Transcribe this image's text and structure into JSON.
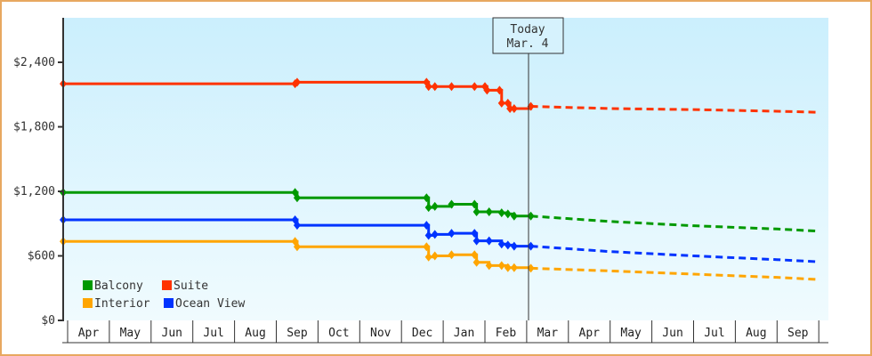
{
  "chart_data": {
    "type": "line",
    "title": "",
    "xlabel": "",
    "ylabel": "",
    "ylim": [
      0,
      2800
    ],
    "y_ticks": [
      {
        "value": 0,
        "label": "$0"
      },
      {
        "value": 600,
        "label": "$600"
      },
      {
        "value": 1200,
        "label": "$1,200"
      },
      {
        "value": 1800,
        "label": "$1,800"
      },
      {
        "value": 2400,
        "label": "$2,400"
      }
    ],
    "x_ticks": [
      "Apr",
      "May",
      "Jun",
      "Jul",
      "Aug",
      "Sep",
      "Oct",
      "Nov",
      "Dec",
      "Jan",
      "Feb",
      "Mar",
      "Apr",
      "May",
      "Jun",
      "Jul",
      "Aug",
      "Sep"
    ],
    "grid": false,
    "legend_position": "lower-left",
    "annotation": {
      "line1": "Today",
      "line2": "Mar. 4",
      "x_month": 11.1
    },
    "series": [
      {
        "name": "Suite",
        "color": "#ff3300",
        "points": [
          [
            0,
            2200
          ],
          [
            5.45,
            2200
          ],
          [
            5.5,
            2215
          ],
          [
            8.6,
            2215
          ],
          [
            8.65,
            2175
          ],
          [
            8.8,
            2175
          ],
          [
            9.2,
            2175
          ],
          [
            9.75,
            2175
          ],
          [
            10.0,
            2175
          ],
          [
            10.05,
            2140
          ],
          [
            10.35,
            2140
          ],
          [
            10.4,
            2020
          ],
          [
            10.55,
            2020
          ],
          [
            10.6,
            1970
          ],
          [
            10.7,
            1970
          ],
          [
            11.1,
            1990
          ]
        ],
        "forecast": [
          [
            11.1,
            1990
          ],
          [
            13.0,
            1970
          ],
          [
            15.0,
            1960
          ],
          [
            17.0,
            1945
          ],
          [
            18.0,
            1935
          ]
        ]
      },
      {
        "name": "Balcony",
        "color": "#009900",
        "points": [
          [
            0,
            1190
          ],
          [
            5.45,
            1190
          ],
          [
            5.5,
            1140
          ],
          [
            8.6,
            1140
          ],
          [
            8.65,
            1050
          ],
          [
            8.8,
            1060
          ],
          [
            9.2,
            1080
          ],
          [
            9.75,
            1080
          ],
          [
            9.8,
            1010
          ],
          [
            10.1,
            1010
          ],
          [
            10.4,
            1000
          ],
          [
            10.55,
            990
          ],
          [
            10.7,
            970
          ],
          [
            11.1,
            970
          ]
        ],
        "forecast": [
          [
            11.1,
            970
          ],
          [
            13.0,
            920
          ],
          [
            15.0,
            880
          ],
          [
            17.0,
            850
          ],
          [
            18.0,
            830
          ]
        ]
      },
      {
        "name": "Ocean View",
        "color": "#0033ff",
        "points": [
          [
            0,
            935
          ],
          [
            5.45,
            935
          ],
          [
            5.5,
            885
          ],
          [
            8.6,
            885
          ],
          [
            8.65,
            790
          ],
          [
            8.8,
            800
          ],
          [
            9.2,
            810
          ],
          [
            9.75,
            810
          ],
          [
            9.8,
            740
          ],
          [
            10.1,
            740
          ],
          [
            10.4,
            710
          ],
          [
            10.55,
            700
          ],
          [
            10.7,
            690
          ],
          [
            11.1,
            690
          ]
        ],
        "forecast": [
          [
            11.1,
            690
          ],
          [
            13.0,
            640
          ],
          [
            15.0,
            600
          ],
          [
            17.0,
            565
          ],
          [
            18.0,
            545
          ]
        ]
      },
      {
        "name": "Interior",
        "color": "#ffa500",
        "points": [
          [
            0,
            735
          ],
          [
            5.45,
            735
          ],
          [
            5.5,
            685
          ],
          [
            8.6,
            685
          ],
          [
            8.65,
            590
          ],
          [
            8.8,
            600
          ],
          [
            9.2,
            610
          ],
          [
            9.75,
            610
          ],
          [
            9.8,
            540
          ],
          [
            10.1,
            510
          ],
          [
            10.4,
            510
          ],
          [
            10.55,
            490
          ],
          [
            10.7,
            490
          ],
          [
            11.1,
            485
          ]
        ],
        "forecast": [
          [
            11.1,
            485
          ],
          [
            13.0,
            460
          ],
          [
            15.0,
            430
          ],
          [
            17.0,
            400
          ],
          [
            18.0,
            380
          ]
        ]
      }
    ]
  },
  "legend": [
    {
      "label": "Balcony",
      "color": "#009900"
    },
    {
      "label": "Suite",
      "color": "#ff3300"
    },
    {
      "label": "Interior",
      "color": "#ffa500"
    },
    {
      "label": "Ocean View",
      "color": "#0033ff"
    }
  ]
}
